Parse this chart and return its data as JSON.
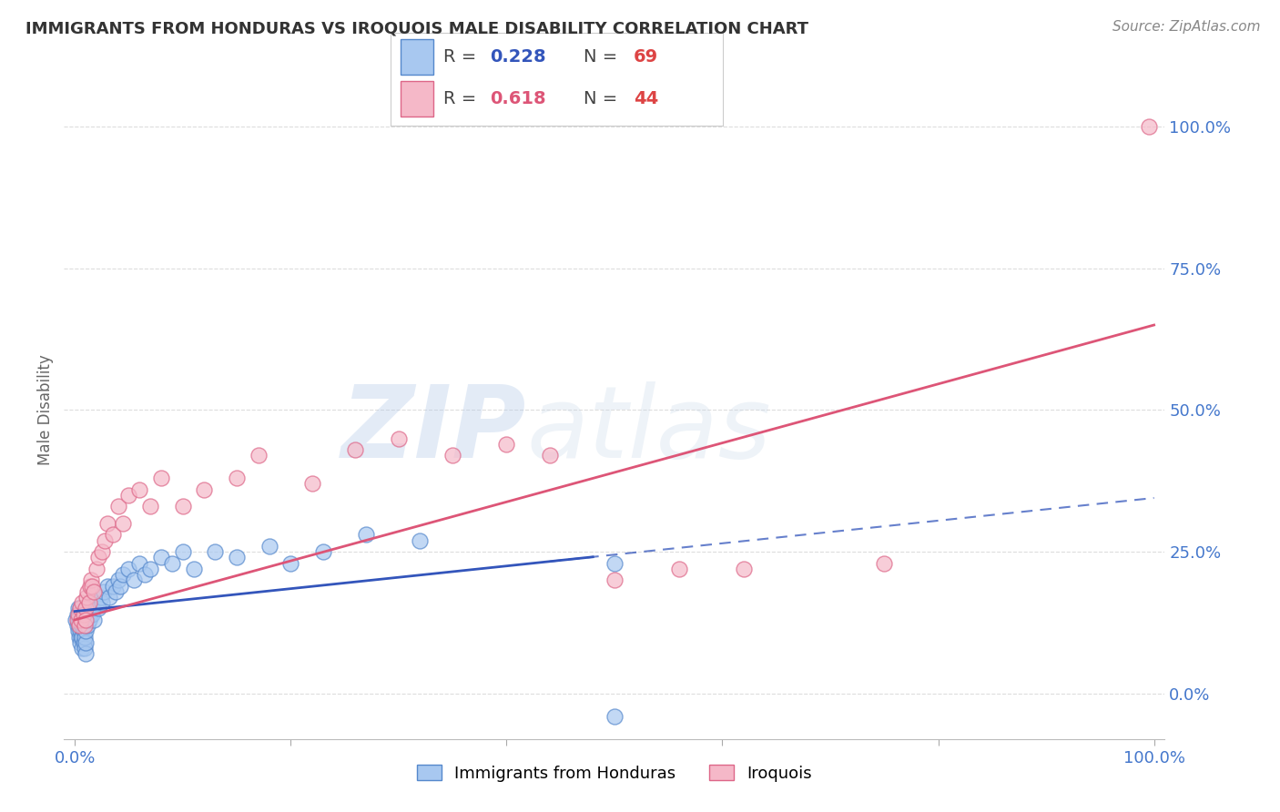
{
  "title": "IMMIGRANTS FROM HONDURAS VS IROQUOIS MALE DISABILITY CORRELATION CHART",
  "source": "Source: ZipAtlas.com",
  "ylabel": "Male Disability",
  "xlim": [
    -0.01,
    1.01
  ],
  "ylim": [
    -0.08,
    1.08
  ],
  "ytick_positions": [
    0.0,
    0.25,
    0.5,
    0.75,
    1.0
  ],
  "ytick_labels": [
    "0.0%",
    "25.0%",
    "50.0%",
    "75.0%",
    "100.0%"
  ],
  "xtick_positions": [
    0.0,
    0.2,
    0.4,
    0.6,
    0.8,
    1.0
  ],
  "xtick_labels": [
    "0.0%",
    "",
    "",
    "",
    "",
    "100.0%"
  ],
  "blue_R": 0.228,
  "blue_N": 69,
  "pink_R": 0.618,
  "pink_N": 44,
  "blue_fill_color": "#A8C8F0",
  "pink_fill_color": "#F5B8C8",
  "blue_edge_color": "#5588CC",
  "pink_edge_color": "#DD6688",
  "blue_line_color": "#3355BB",
  "pink_line_color": "#DD5577",
  "legend_box_color": "#DDDDDD",
  "blue_scatter_x": [
    0.001,
    0.002,
    0.002,
    0.003,
    0.003,
    0.003,
    0.004,
    0.004,
    0.004,
    0.005,
    0.005,
    0.005,
    0.005,
    0.006,
    0.006,
    0.006,
    0.007,
    0.007,
    0.007,
    0.008,
    0.008,
    0.008,
    0.009,
    0.009,
    0.009,
    0.01,
    0.01,
    0.01,
    0.01,
    0.01,
    0.011,
    0.012,
    0.012,
    0.013,
    0.014,
    0.015,
    0.016,
    0.017,
    0.018,
    0.02,
    0.022,
    0.024,
    0.025,
    0.027,
    0.03,
    0.032,
    0.035,
    0.038,
    0.04,
    0.042,
    0.045,
    0.05,
    0.055,
    0.06,
    0.065,
    0.07,
    0.08,
    0.09,
    0.1,
    0.11,
    0.13,
    0.15,
    0.18,
    0.2,
    0.23,
    0.27,
    0.32,
    0.5,
    0.5
  ],
  "blue_scatter_y": [
    0.13,
    0.12,
    0.14,
    0.11,
    0.13,
    0.15,
    0.1,
    0.12,
    0.14,
    0.09,
    0.11,
    0.13,
    0.15,
    0.1,
    0.12,
    0.14,
    0.08,
    0.1,
    0.12,
    0.09,
    0.11,
    0.13,
    0.08,
    0.1,
    0.12,
    0.07,
    0.09,
    0.11,
    0.13,
    0.15,
    0.13,
    0.12,
    0.14,
    0.13,
    0.14,
    0.15,
    0.14,
    0.15,
    0.13,
    0.16,
    0.15,
    0.17,
    0.16,
    0.18,
    0.19,
    0.17,
    0.19,
    0.18,
    0.2,
    0.19,
    0.21,
    0.22,
    0.2,
    0.23,
    0.21,
    0.22,
    0.24,
    0.23,
    0.25,
    0.22,
    0.25,
    0.24,
    0.26,
    0.23,
    0.25,
    0.28,
    0.27,
    0.23,
    -0.04
  ],
  "pink_scatter_x": [
    0.002,
    0.003,
    0.004,
    0.005,
    0.006,
    0.007,
    0.008,
    0.009,
    0.01,
    0.01,
    0.011,
    0.012,
    0.013,
    0.014,
    0.015,
    0.016,
    0.018,
    0.02,
    0.022,
    0.025,
    0.028,
    0.03,
    0.035,
    0.04,
    0.045,
    0.05,
    0.06,
    0.07,
    0.08,
    0.1,
    0.12,
    0.15,
    0.17,
    0.22,
    0.26,
    0.3,
    0.35,
    0.4,
    0.44,
    0.5,
    0.56,
    0.62,
    0.75,
    0.995
  ],
  "pink_scatter_y": [
    0.13,
    0.14,
    0.12,
    0.15,
    0.13,
    0.16,
    0.14,
    0.12,
    0.15,
    0.13,
    0.17,
    0.18,
    0.16,
    0.19,
    0.2,
    0.19,
    0.18,
    0.22,
    0.24,
    0.25,
    0.27,
    0.3,
    0.28,
    0.33,
    0.3,
    0.35,
    0.36,
    0.33,
    0.38,
    0.33,
    0.36,
    0.38,
    0.42,
    0.37,
    0.43,
    0.45,
    0.42,
    0.44,
    0.42,
    0.2,
    0.22,
    0.22,
    0.23,
    1.0
  ],
  "watermark_zip": "ZIP",
  "watermark_atlas": "atlas",
  "background_color": "#FFFFFF",
  "grid_color": "#DDDDDD"
}
